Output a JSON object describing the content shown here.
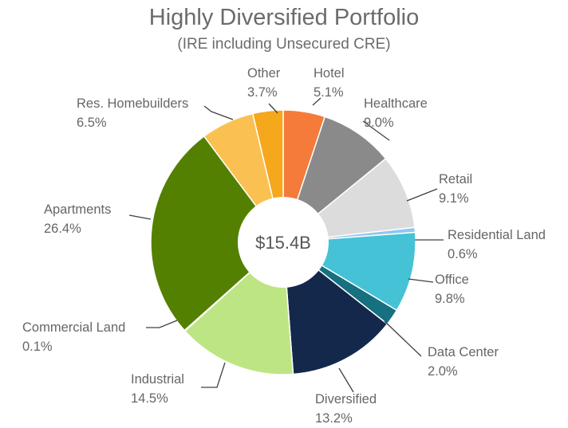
{
  "chart_data": {
    "type": "pie",
    "title": "Highly Diversified Portfolio",
    "subtitle": "(IRE including Unsecured CRE)",
    "center_label": "$15.4B",
    "unit": "%",
    "slices": [
      {
        "name": "Hotel",
        "value": 5.1,
        "label": "5.1%",
        "color": "#F47B3A"
      },
      {
        "name": "Healthcare",
        "value": 9.0,
        "label": "9.0%",
        "color": "#8A8A8A"
      },
      {
        "name": "Retail",
        "value": 9.1,
        "label": "9.1%",
        "color": "#DCDCDC"
      },
      {
        "name": "Residential Land",
        "value": 0.6,
        "label": "0.6%",
        "color": "#8FC7F2"
      },
      {
        "name": "Office",
        "value": 9.8,
        "label": "9.8%",
        "color": "#45C2D6"
      },
      {
        "name": "Data Center",
        "value": 2.0,
        "label": "2.0%",
        "color": "#16707F"
      },
      {
        "name": "Diversified",
        "value": 13.2,
        "label": "13.2%",
        "color": "#14284B"
      },
      {
        "name": "Industrial",
        "value": 14.5,
        "label": "14.5%",
        "color": "#BEE584"
      },
      {
        "name": "Commercial Land",
        "value": 0.1,
        "label": "0.1%",
        "color": "#5E8A16"
      },
      {
        "name": "Apartments",
        "value": 26.4,
        "label": "26.4%",
        "color": "#538000"
      },
      {
        "name": "Res. Homebuilders",
        "value": 6.5,
        "label": "6.5%",
        "color": "#FAC152"
      },
      {
        "name": "Other",
        "value": 3.7,
        "label": "3.7%",
        "color": "#F5A81C"
      }
    ]
  }
}
